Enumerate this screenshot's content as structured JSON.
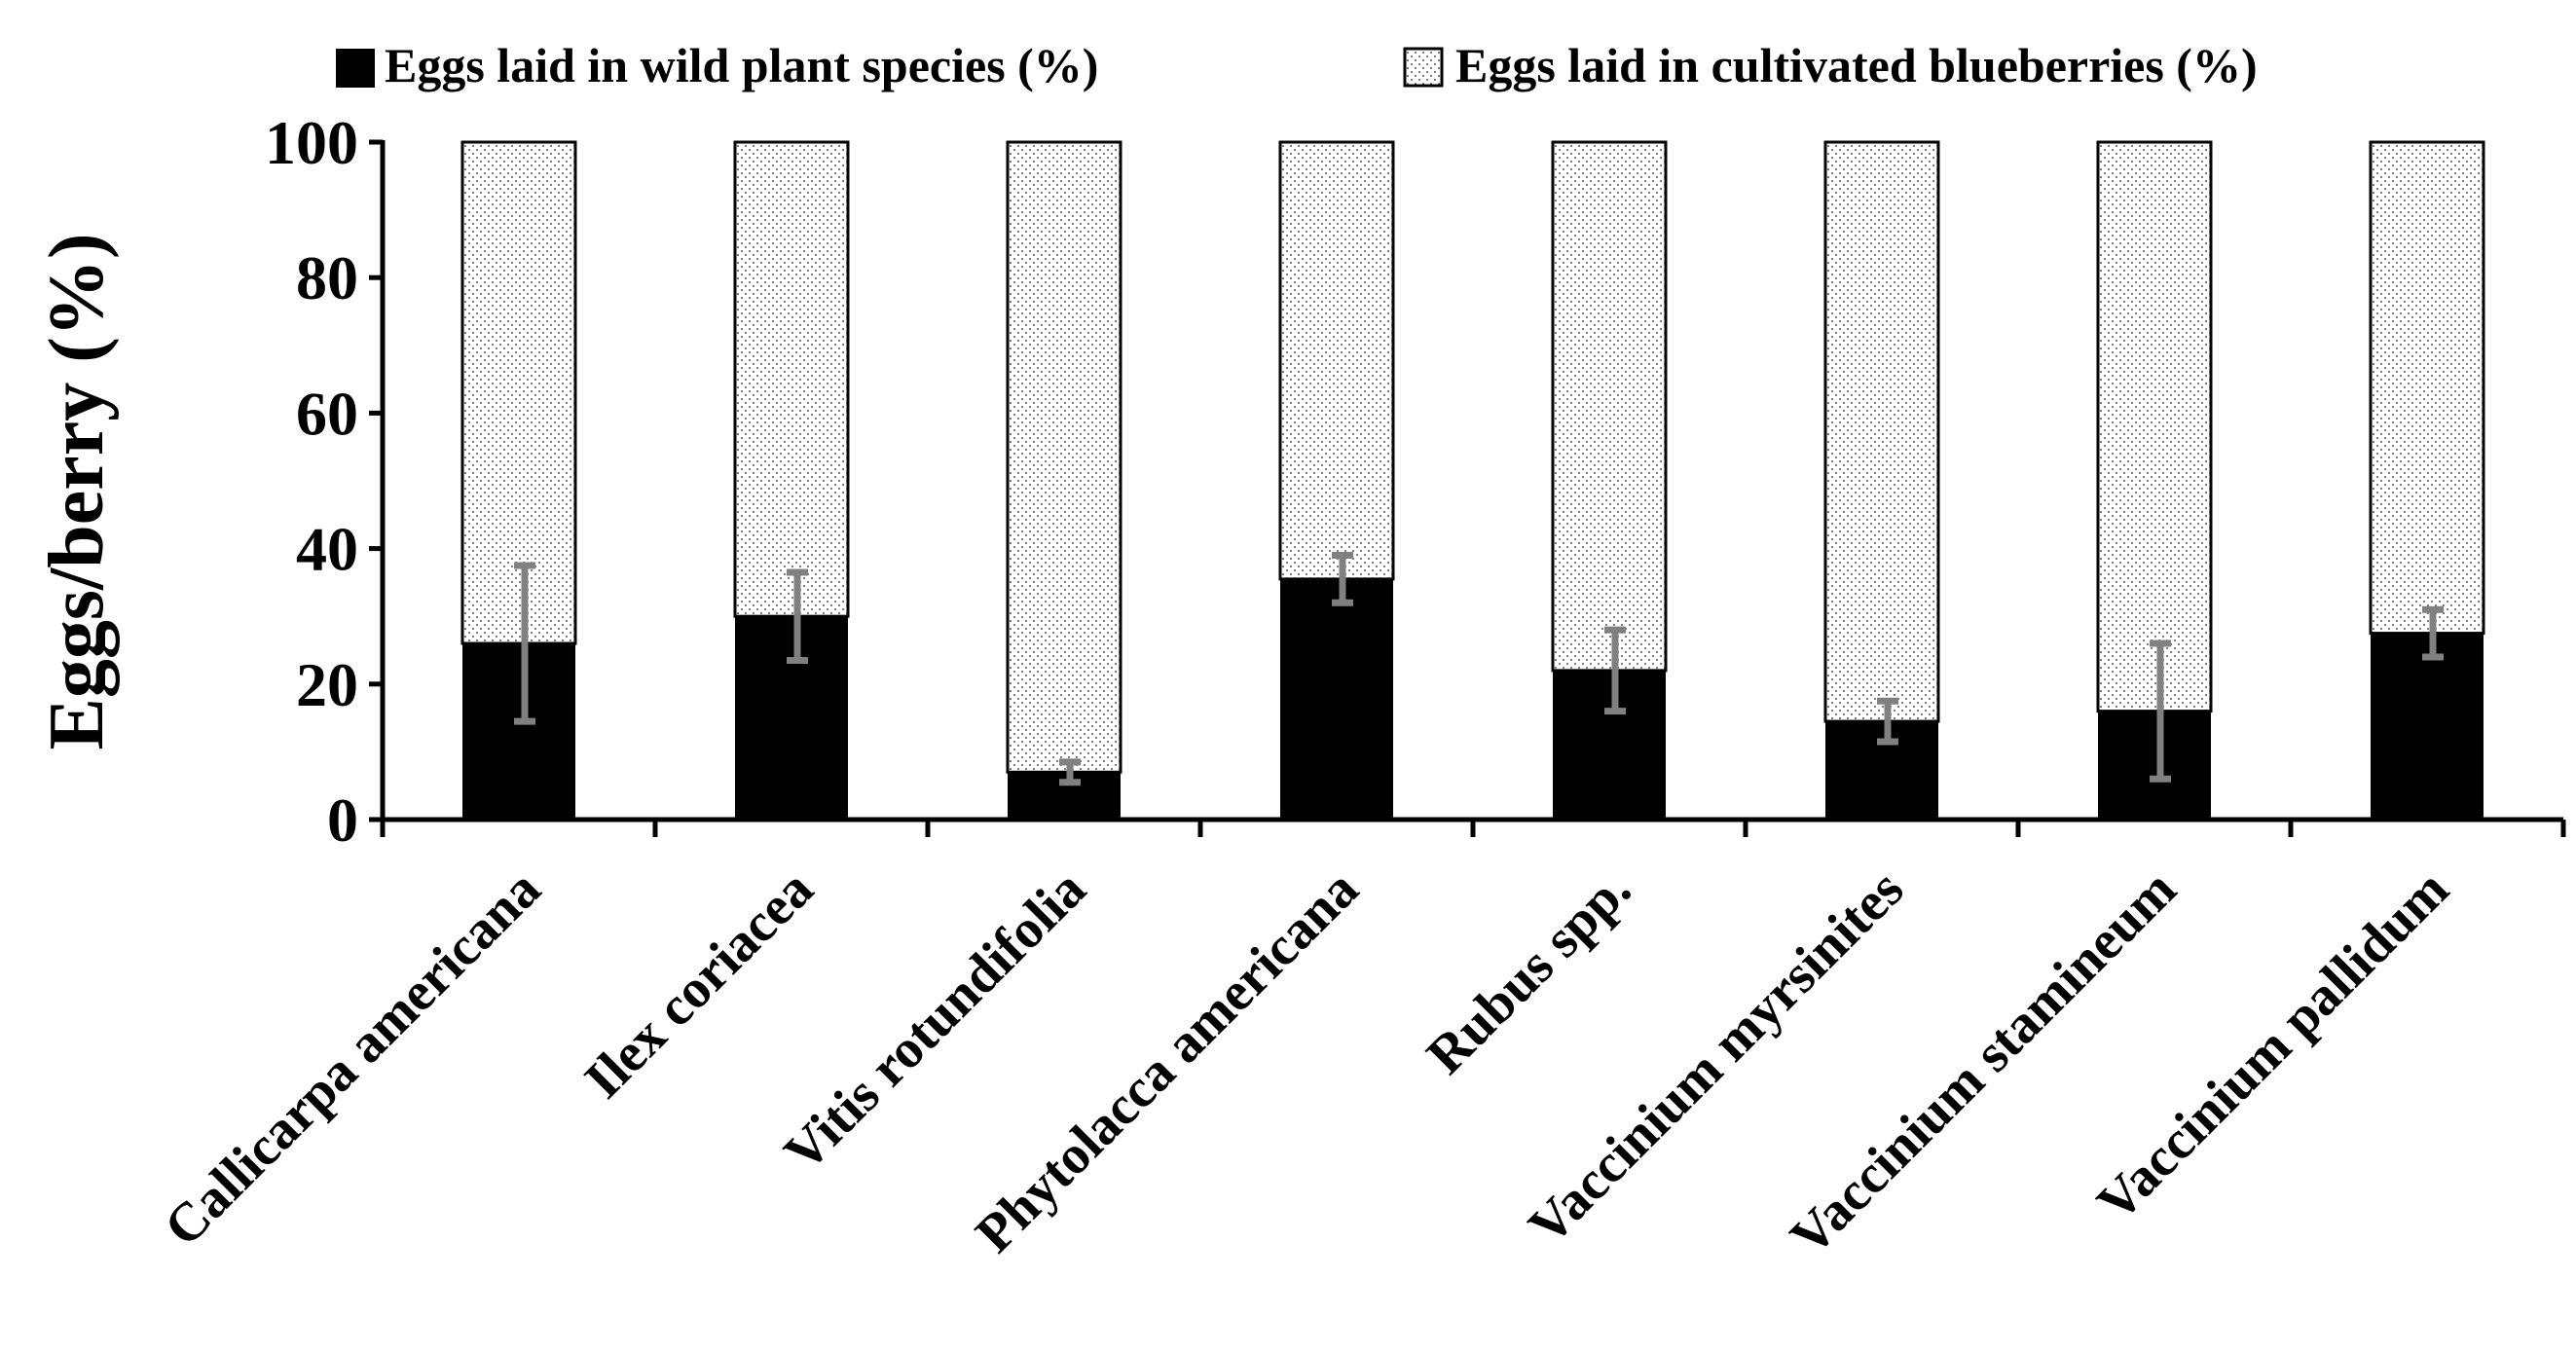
{
  "chart_data": {
    "type": "bar",
    "stacked": true,
    "title": "",
    "xlabel": "",
    "ylabel": "Eggs/berry (%)",
    "ylim": [
      0,
      100
    ],
    "yticks": [
      0,
      20,
      40,
      60,
      80,
      100
    ],
    "legend_position": "top",
    "categories": [
      "Callicarpa americana",
      "Ilex coriacea",
      "Vitis rotundifolia",
      "Phytolacca americana",
      "Rubus spp.",
      "Vaccinium myrsinites",
      "Vaccinium stamineum",
      "Vaccinium pallidum"
    ],
    "series": [
      {
        "name": "Eggs laid in wild plant species (%)",
        "fill": "solid",
        "color": "#000000",
        "values": [
          26,
          30,
          7,
          35.5,
          22,
          14.5,
          16,
          27.5
        ],
        "error": [
          11.5,
          6.5,
          1.5,
          3.5,
          6,
          3,
          10,
          3.5
        ]
      },
      {
        "name": "Eggs laid in cultivated blueberries (%)",
        "fill": "dotted",
        "color": "#ffffff",
        "values": [
          74,
          70,
          93,
          64.5,
          78,
          85.5,
          84,
          72.5
        ]
      }
    ],
    "error_bar_color": "#808080"
  }
}
